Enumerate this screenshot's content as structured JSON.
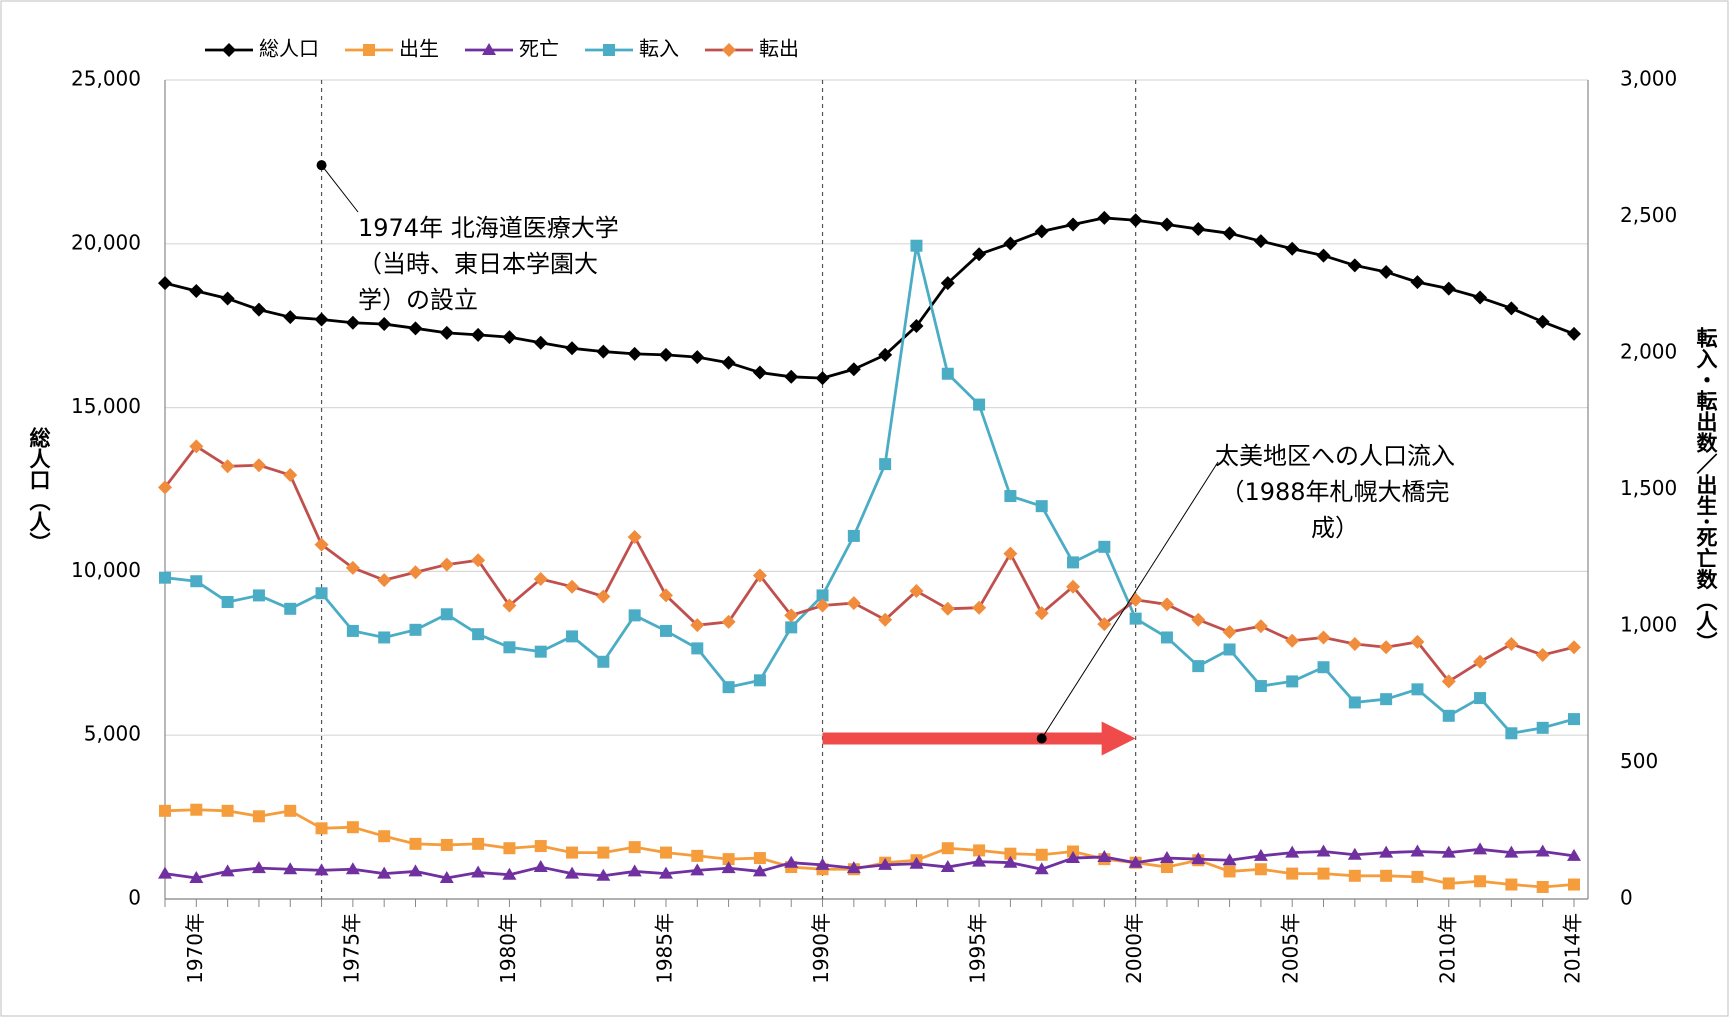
{
  "chart_data": {
    "type": "line",
    "y_label": "総人口（人）",
    "y2_label": "転入・転出数／出生･死亡数（人）",
    "x": [
      1969,
      1970,
      1971,
      1972,
      1973,
      1974,
      1975,
      1976,
      1977,
      1978,
      1979,
      1980,
      1981,
      1982,
      1983,
      1984,
      1985,
      1986,
      1987,
      1988,
      1989,
      1990,
      1991,
      1992,
      1993,
      1994,
      1995,
      1996,
      1997,
      1998,
      1999,
      2000,
      2001,
      2002,
      2003,
      2004,
      2005,
      2006,
      2007,
      2008,
      2009,
      2010,
      2011,
      2012,
      2013,
      2014
    ],
    "xlim": [
      1969,
      2014
    ],
    "xticks": [
      {
        "value": 1970,
        "label": "1970年"
      },
      {
        "value": 1975,
        "label": "1975年"
      },
      {
        "value": 1980,
        "label": "1980年"
      },
      {
        "value": 1985,
        "label": "1985年"
      },
      {
        "value": 1990,
        "label": "1990年"
      },
      {
        "value": 1995,
        "label": "1995年"
      },
      {
        "value": 2000,
        "label": "2000年"
      },
      {
        "value": 2005,
        "label": "2005年"
      },
      {
        "value": 2010,
        "label": "2010年"
      },
      {
        "value": 2014,
        "label": "2014年"
      }
    ],
    "ylim": [
      0,
      25000
    ],
    "yticks": [
      0,
      {
        "value": 5000,
        "label": "5,000"
      },
      {
        "value": 10000,
        "label": "10,000"
      },
      {
        "value": 15000,
        "label": "15,000"
      },
      {
        "value": 20000,
        "label": "20,000"
      },
      {
        "value": 25000,
        "label": "25,000"
      }
    ],
    "y2lim": [
      0,
      3000
    ],
    "y2ticks": [
      0,
      500,
      {
        "value": 1000,
        "label": "1,000"
      },
      {
        "value": 1500,
        "label": "1,500"
      },
      {
        "value": 2000,
        "label": "2,000"
      },
      {
        "value": 2500,
        "label": "2,500"
      },
      {
        "value": 3000,
        "label": "3,000"
      }
    ],
    "grid": true,
    "legend": "top-left",
    "series": [
      {
        "name": "総人口",
        "color": "#000000",
        "marker": "diamond",
        "marker_color": "#000000",
        "values": [
          18800,
          18560,
          18330,
          17990,
          17760,
          17690,
          17590,
          17550,
          17420,
          17280,
          17220,
          17150,
          16980,
          16810,
          16710,
          16640,
          16610,
          16540,
          16370,
          16070,
          15940,
          15900,
          16170,
          16610,
          17490,
          18800,
          19680,
          20010,
          20380,
          20590,
          20790,
          20720,
          20590,
          20450,
          20320,
          20080,
          19850,
          19640,
          19340,
          19140,
          18830,
          18630,
          18360,
          18030,
          17620,
          17250
        ]
      },
      {
        "name": "出生",
        "color": "#f59d3d",
        "marker": "square",
        "marker_color": "#f59d3d",
        "axis": "y2",
        "values": [
          323,
          327,
          323,
          303,
          323,
          259,
          263,
          230,
          202,
          198,
          202,
          186,
          194,
          170,
          170,
          190,
          170,
          158,
          146,
          150,
          117,
          109,
          109,
          133,
          142,
          186,
          178,
          166,
          162,
          174,
          146,
          133,
          117,
          142,
          101,
          109,
          93,
          93,
          85,
          85,
          81,
          57,
          65,
          53,
          44,
          53
        ]
      },
      {
        "name": "死亡",
        "color": "#7030a0",
        "marker": "triangle",
        "marker_color": "#7030a0",
        "axis": "y2",
        "values": [
          93,
          77,
          101,
          113,
          109,
          105,
          109,
          93,
          101,
          77,
          97,
          89,
          117,
          93,
          85,
          101,
          93,
          105,
          113,
          101,
          133,
          125,
          113,
          125,
          129,
          117,
          137,
          133,
          109,
          150,
          154,
          133,
          150,
          146,
          142,
          158,
          170,
          174,
          162,
          170,
          174,
          170,
          182,
          170,
          174,
          158
        ]
      },
      {
        "name": "転入",
        "color": "#4bacc6",
        "marker": "square",
        "marker_color": "#4bacc6",
        "axis": "y2",
        "values": [
          1177,
          1164,
          1088,
          1112,
          1063,
          1120,
          982,
          958,
          986,
          1043,
          970,
          922,
          906,
          962,
          869,
          1039,
          982,
          918,
          776,
          801,
          995,
          1112,
          1330,
          1593,
          2393,
          1924,
          1811,
          1476,
          1439,
          1233,
          1290,
          1027,
          958,
          853,
          914,
          780,
          797,
          849,
          720,
          732,
          768,
          671,
          736,
          607,
          627,
          659
        ]
      },
      {
        "name": "転出",
        "color": "#c0504d",
        "marker": "diamond",
        "marker_color": "#f08c3c",
        "axis": "y2",
        "values": [
          1508,
          1658,
          1585,
          1589,
          1553,
          1298,
          1213,
          1168,
          1197,
          1225,
          1241,
          1075,
          1172,
          1144,
          1108,
          1326,
          1112,
          1003,
          1015,
          1185,
          1039,
          1075,
          1084,
          1023,
          1128,
          1063,
          1067,
          1265,
          1047,
          1144,
          1007,
          1096,
          1079,
          1023,
          978,
          999,
          946,
          958,
          934,
          922,
          942,
          797,
          869,
          934,
          894,
          922
        ]
      }
    ],
    "reference_lines": [
      1974,
      1990,
      2000
    ],
    "arrow": {
      "x": [
        1990,
        2000
      ],
      "y": 4900,
      "color": "#f04b4b"
    },
    "annotations": [
      {
        "lines": [
          "1974年 北海道医療大学",
          "（当時、東日本学園大",
          "学）の設立"
        ],
        "point": [
          1974,
          22400
        ]
      },
      {
        "lines": [
          "太美地区への人口流入",
          "（1988年札幌大橋完",
          "成）"
        ],
        "point": [
          1997,
          4900
        ]
      }
    ]
  }
}
